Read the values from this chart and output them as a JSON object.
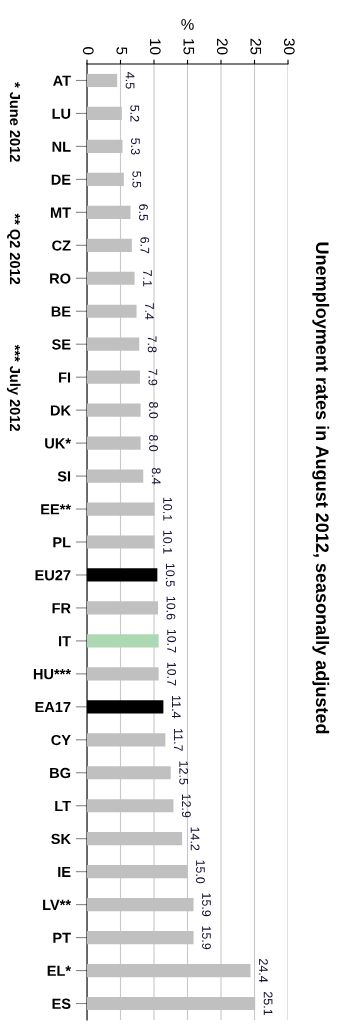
{
  "chart_data": {
    "type": "bar",
    "orientation": "horizontal",
    "title": "Unemployment rates in August 2012, seasonally adjusted",
    "xlabel": "%",
    "annotations": [
      "* June 2012",
      "** Q2 2012",
      "*** July 2012"
    ],
    "categories": [
      "AT",
      "LU",
      "NL",
      "DE",
      "MT",
      "CZ",
      "RO",
      "BE",
      "SE",
      "FI",
      "DK",
      "UK*",
      "SI",
      "EE**",
      "PL",
      "EU27",
      "FR",
      "IT",
      "HU***",
      "EA17",
      "CY",
      "BG",
      "LT",
      "SK",
      "IE",
      "LV**",
      "PT",
      "EL*",
      "ES"
    ],
    "values": [
      4.5,
      5.2,
      5.3,
      5.5,
      6.5,
      6.7,
      7.1,
      7.4,
      7.8,
      7.9,
      8.0,
      8.0,
      8.4,
      10.1,
      10.1,
      10.5,
      10.6,
      10.7,
      10.7,
      11.4,
      11.7,
      12.5,
      12.9,
      14.2,
      15.0,
      15.9,
      15.9,
      24.4,
      25.1
    ],
    "value_labels": [
      "4.5",
      "5.2",
      "5.3",
      "5.5",
      "6.5",
      "6.7",
      "7.1",
      "7.4",
      "7.8",
      "7.9",
      "8.0",
      "8.0",
      "8.4",
      "10.1",
      "10.1",
      "10.5",
      "10.6",
      "10.7",
      "10.7",
      "11.4",
      "11.7",
      "12.5",
      "12.9",
      "14.2",
      "15.0",
      "15.9",
      "15.9",
      "24.4",
      "25.1"
    ],
    "colors": [
      "#c0c0c0",
      "#c0c0c0",
      "#c0c0c0",
      "#c0c0c0",
      "#c0c0c0",
      "#c0c0c0",
      "#c0c0c0",
      "#c0c0c0",
      "#c0c0c0",
      "#c0c0c0",
      "#c0c0c0",
      "#c0c0c0",
      "#c0c0c0",
      "#c0c0c0",
      "#c0c0c0",
      "#000000",
      "#c0c0c0",
      "#acd8b4",
      "#c0c0c0",
      "#000000",
      "#c0c0c0",
      "#c0c0c0",
      "#c0c0c0",
      "#c0c0c0",
      "#c0c0c0",
      "#c0c0c0",
      "#c0c0c0",
      "#c0c0c0",
      "#c0c0c0"
    ],
    "xlim": [
      0,
      30
    ],
    "xticks": [
      0,
      5,
      10,
      15,
      20,
      25,
      30
    ],
    "grid": "x",
    "legend": false
  }
}
